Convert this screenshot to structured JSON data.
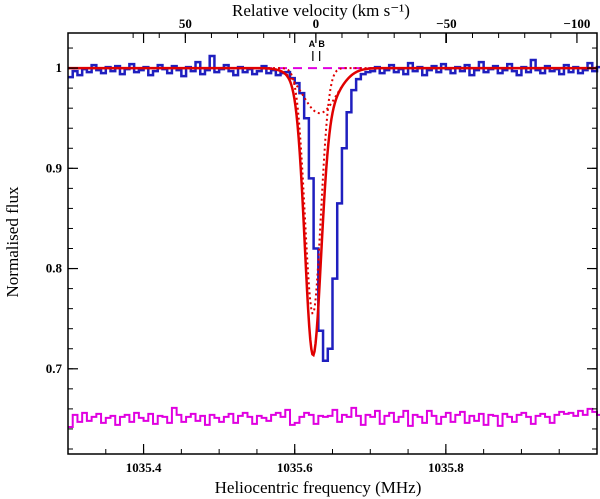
{
  "chart_data": {
    "type": "line",
    "title": "",
    "xlabel": "Heliocentric frequency (MHz)",
    "ylabel": "Normalised flux",
    "top_axis_label": "Relative velocity (km s⁻¹)",
    "xlim": [
      1035.3,
      1036.0
    ],
    "ylim": [
      0.615,
      1.035
    ],
    "x_ticks": [
      1035.4,
      1035.6,
      1035.8
    ],
    "x_tick_labels": [
      "1035.4",
      "1035.6",
      "1035.8"
    ],
    "y_ticks": [
      0.7,
      0.8,
      0.9,
      1.0
    ],
    "y_tick_labels": [
      "0.7",
      "0.8",
      "0.9",
      "1"
    ],
    "top_ticks": [
      50,
      0,
      -50,
      -100
    ],
    "top_tick_labels": [
      "50",
      "0",
      "−50",
      "−100"
    ],
    "velocity_reference_freq_mhz": 1035.628,
    "components": [
      {
        "label": "A",
        "freq_mhz": 1035.624
      },
      {
        "label": "B",
        "freq_mhz": 1035.633
      }
    ],
    "bin_width_mhz": 0.00625,
    "series": [
      {
        "name": "spectrum",
        "style": "histogram",
        "color": "#1f1fbf",
        "x_start": 1035.3,
        "values": [
          0.991,
          0.997,
          0.993,
          0.999,
          0.996,
          1.003,
          0.998,
          0.995,
          1.001,
          0.997,
          1.002,
          0.994,
          0.999,
          1.004,
          0.996,
          0.998,
          1.001,
          0.993,
          0.997,
          1.003,
          0.999,
          0.995,
          1.002,
          0.998,
          0.992,
          1.001,
          0.997,
          1.006,
          0.994,
          0.998,
          1.012,
          0.996,
          0.999,
          1.003,
          0.997,
          0.993,
          1.001,
          0.996,
          0.999,
          0.994,
          0.997,
          1.002,
          0.995,
          0.998,
          0.993,
          0.995,
          0.996,
          0.99,
          0.985,
          0.975,
          0.95,
          0.89,
          0.82,
          0.738,
          0.708,
          0.72,
          0.79,
          0.865,
          0.92,
          0.956,
          0.978,
          0.989,
          0.994,
          0.996,
          0.997,
          1.001,
          0.995,
          0.998,
          1.003,
          0.996,
          0.999,
          0.994,
          1.005,
          0.997,
          1.001,
          0.993,
          0.998,
          1.002,
          0.996,
          1.004,
          0.999,
          0.995,
          1.001,
          0.997,
          1.003,
          0.993,
          0.998,
          1.006,
          0.996,
          0.999,
          1.002,
          0.995,
          0.998,
          1.004,
          0.997,
          0.993,
          1.001,
          0.996,
          1.008,
          0.998,
          0.995,
          1.002,
          0.997,
          0.999,
          0.994,
          1.003,
          0.996,
          1.001,
          0.995,
          0.998,
          1.005,
          0.997,
          1.001
        ]
      },
      {
        "name": "total fit",
        "style": "curve",
        "color": "#e00000",
        "components": [
          {
            "center": 1035.624,
            "depth": 0.245,
            "sigma": 0.0105
          },
          {
            "center": 1035.633,
            "depth": 0.045,
            "sigma": 0.022
          }
        ]
      },
      {
        "name": "fit component A",
        "style": "dotted",
        "color": "#e00000",
        "components": [
          {
            "center": 1035.624,
            "depth": 0.245,
            "sigma": 0.0105
          }
        ]
      },
      {
        "name": "fit component B",
        "style": "dotted",
        "color": "#e00000",
        "components": [
          {
            "center": 1035.633,
            "depth": 0.045,
            "sigma": 0.022
          }
        ]
      },
      {
        "name": "continuum",
        "style": "dashed",
        "color": "#e000e0",
        "value": 1.0
      },
      {
        "name": "residual",
        "style": "histogram",
        "color": "#e000e0",
        "x_start": 1035.3,
        "offset": 0.65,
        "values": [
          -0.008,
          0.004,
          -0.003,
          0.006,
          -0.002,
          0.002,
          0.005,
          -0.004,
          0.001,
          0.003,
          -0.006,
          0.002,
          0.004,
          -0.003,
          0.006,
          0.001,
          -0.002,
          0.005,
          -0.005,
          0.003,
          0.002,
          -0.004,
          0.011,
          0.004,
          -0.003,
          0.002,
          0.005,
          -0.002,
          0.003,
          -0.006,
          0.004,
          0.001,
          -0.003,
          0.002,
          0.005,
          -0.004,
          0.003,
          0.006,
          0.002,
          -0.005,
          0.003,
          0.001,
          -0.002,
          0.004,
          0.006,
          0.002,
          0.009,
          -0.006,
          -0.004,
          0.002,
          0.006,
          0.004,
          -0.005,
          0.003,
          0.002,
          0.003,
          0.009,
          -0.003,
          0.004,
          0.002,
          0.011,
          0.003,
          -0.006,
          0.004,
          0.002,
          0.008,
          -0.005,
          0.003,
          0.006,
          -0.003,
          0.002,
          0.008,
          -0.007,
          0.004,
          0.002,
          -0.004,
          0.008,
          0.003,
          -0.005,
          0.002,
          0.006,
          -0.003,
          0.004,
          0.007,
          -0.004,
          0.003,
          -0.002,
          0.005,
          -0.006,
          0.004,
          0.003,
          -0.007,
          0.005,
          0.002,
          -0.003,
          0.004,
          0.006,
          0.002,
          -0.005,
          0.003,
          0.005,
          0.002,
          -0.004,
          0.004,
          0.007,
          0.005,
          0.006,
          0.003,
          0.008,
          0.004,
          0.01,
          0.007,
          0.004
        ]
      }
    ]
  }
}
